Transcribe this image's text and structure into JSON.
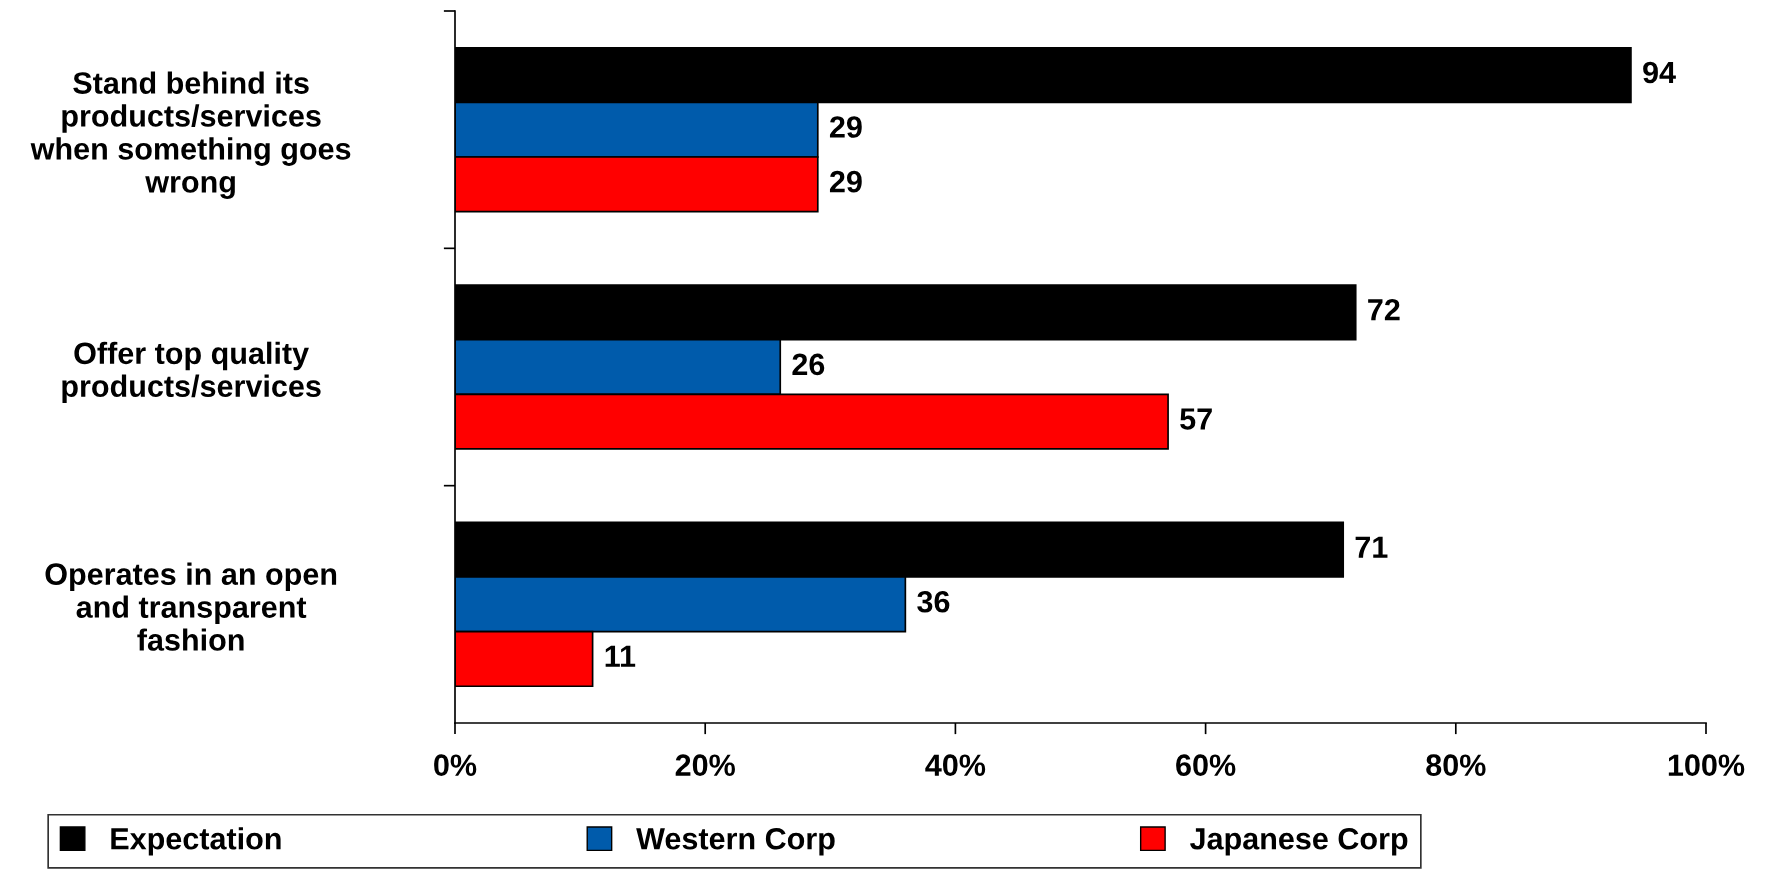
{
  "chart_data": {
    "type": "bar",
    "orientation": "horizontal",
    "categories": [
      "Stand behind its\nproducts/services\nwhen something goes\nwrong",
      "Offer top quality\nproducts/services",
      "Operates in an open\nand transparent\nfashion"
    ],
    "series": [
      {
        "name": "Expectation",
        "color": "#000000",
        "values": [
          94,
          72,
          71
        ]
      },
      {
        "name": "Western Corp",
        "color": "#005bab",
        "values": [
          29,
          26,
          36
        ]
      },
      {
        "name": "Japanese Corp",
        "color": "#ff0000",
        "values": [
          29,
          57,
          11
        ]
      }
    ],
    "xlim": [
      0,
      100
    ],
    "xticks": [
      {
        "value": 0,
        "label": "0%"
      },
      {
        "value": 20,
        "label": "20%"
      },
      {
        "value": 40,
        "label": "40%"
      },
      {
        "value": 60,
        "label": "60%"
      },
      {
        "value": 80,
        "label": "80%"
      },
      {
        "value": 100,
        "label": "100%"
      }
    ],
    "data_labels": true,
    "grid": false,
    "legend": "bottom"
  }
}
